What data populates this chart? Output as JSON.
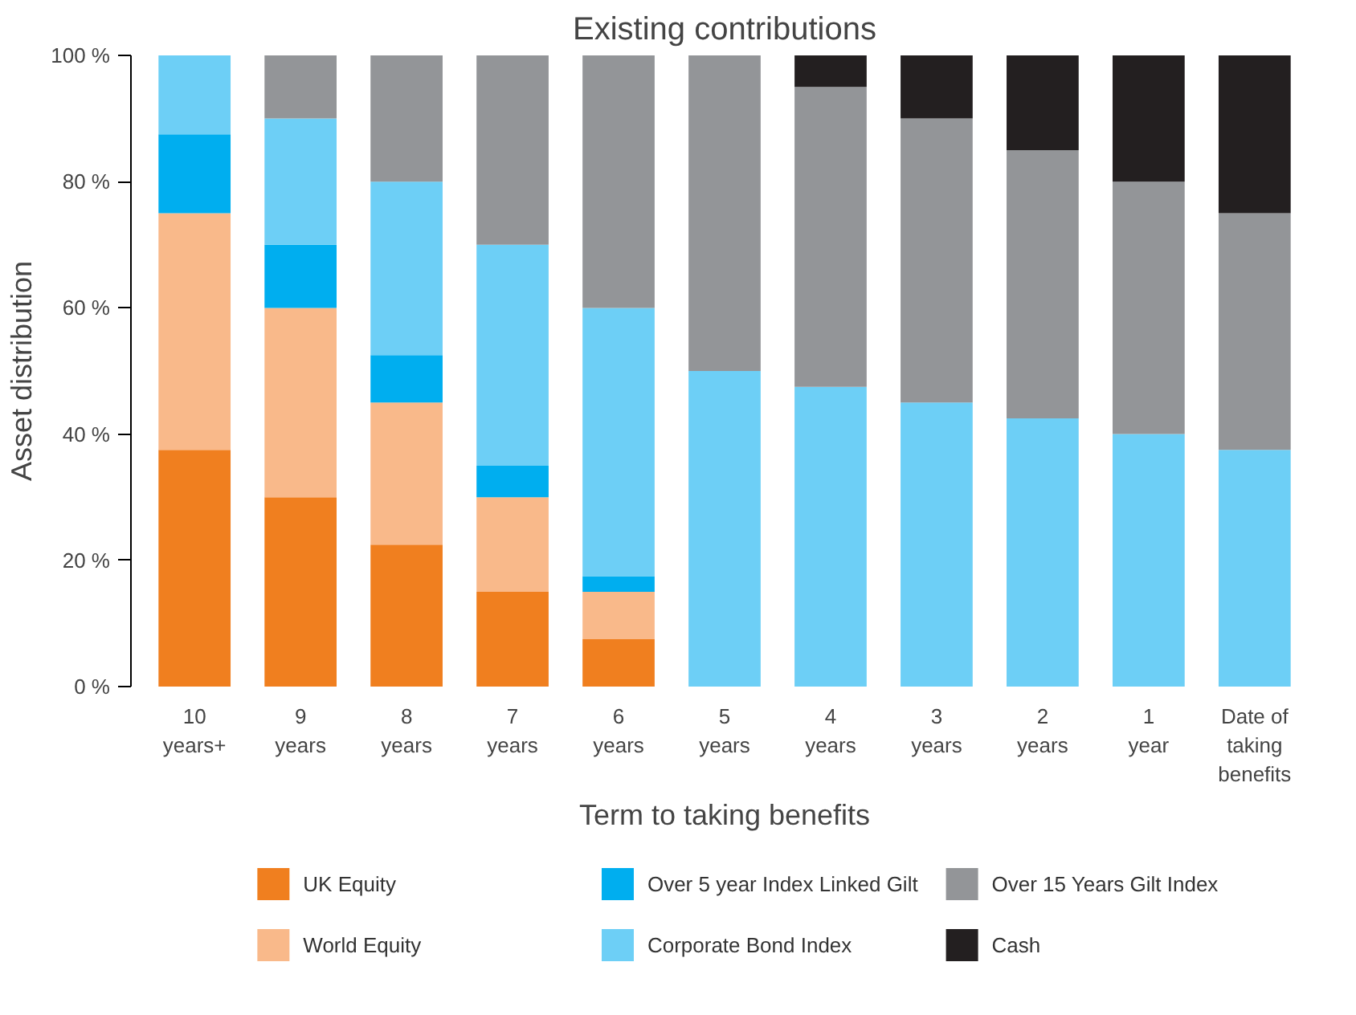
{
  "chart_data": {
    "type": "bar",
    "stacked": true,
    "title": "Existing contributions",
    "xlabel": "Term to taking benefits",
    "ylabel": "Asset distribution",
    "categories": [
      "10\nyears+",
      "9\nyears",
      "8\nyears",
      "7\nyears",
      "6\nyears",
      "5\nyears",
      "4\nyears",
      "3\nyears",
      "2\nyears",
      "1\nyear",
      "Date of\ntaking\nbenefits"
    ],
    "series": [
      {
        "name": "UK Equity",
        "color": "#f07f1f",
        "values": [
          37.5,
          30,
          22.5,
          15,
          7.5,
          0,
          0,
          0,
          0,
          0,
          0
        ]
      },
      {
        "name": "World Equity",
        "color": "#f9b98a",
        "values": [
          37.5,
          30,
          22.5,
          15,
          7.5,
          0,
          0,
          0,
          0,
          0,
          0
        ]
      },
      {
        "name": "Over 5 year Index Linked Gilt",
        "color": "#00aeef",
        "values": [
          12.5,
          10,
          7.5,
          5,
          2.5,
          0,
          0,
          0,
          0,
          0,
          0
        ]
      },
      {
        "name": "Corporate Bond Index",
        "color": "#6dcff6",
        "values": [
          12.5,
          20,
          27.5,
          35,
          42.5,
          50,
          47.5,
          45,
          42.5,
          40,
          37.5
        ]
      },
      {
        "name": "Over 15 Years Gilt Index",
        "color": "#939598",
        "values": [
          0,
          10,
          20,
          30,
          40,
          50,
          47.5,
          45,
          42.5,
          40,
          37.5
        ]
      },
      {
        "name": "Cash",
        "color": "#231f20",
        "values": [
          0,
          0,
          0,
          0,
          0,
          0,
          5,
          10,
          15,
          20,
          25
        ]
      }
    ],
    "ylim": [
      0,
      100
    ],
    "yticks": [
      {
        "value": 0,
        "label": "0 %"
      },
      {
        "value": 20,
        "label": "20 %"
      },
      {
        "value": 40,
        "label": "40 %"
      },
      {
        "value": 60,
        "label": "60 %"
      },
      {
        "value": 80,
        "label": "80 %"
      },
      {
        "value": 100,
        "label": "100 %"
      }
    ],
    "grid": false,
    "legend": "bottom"
  }
}
